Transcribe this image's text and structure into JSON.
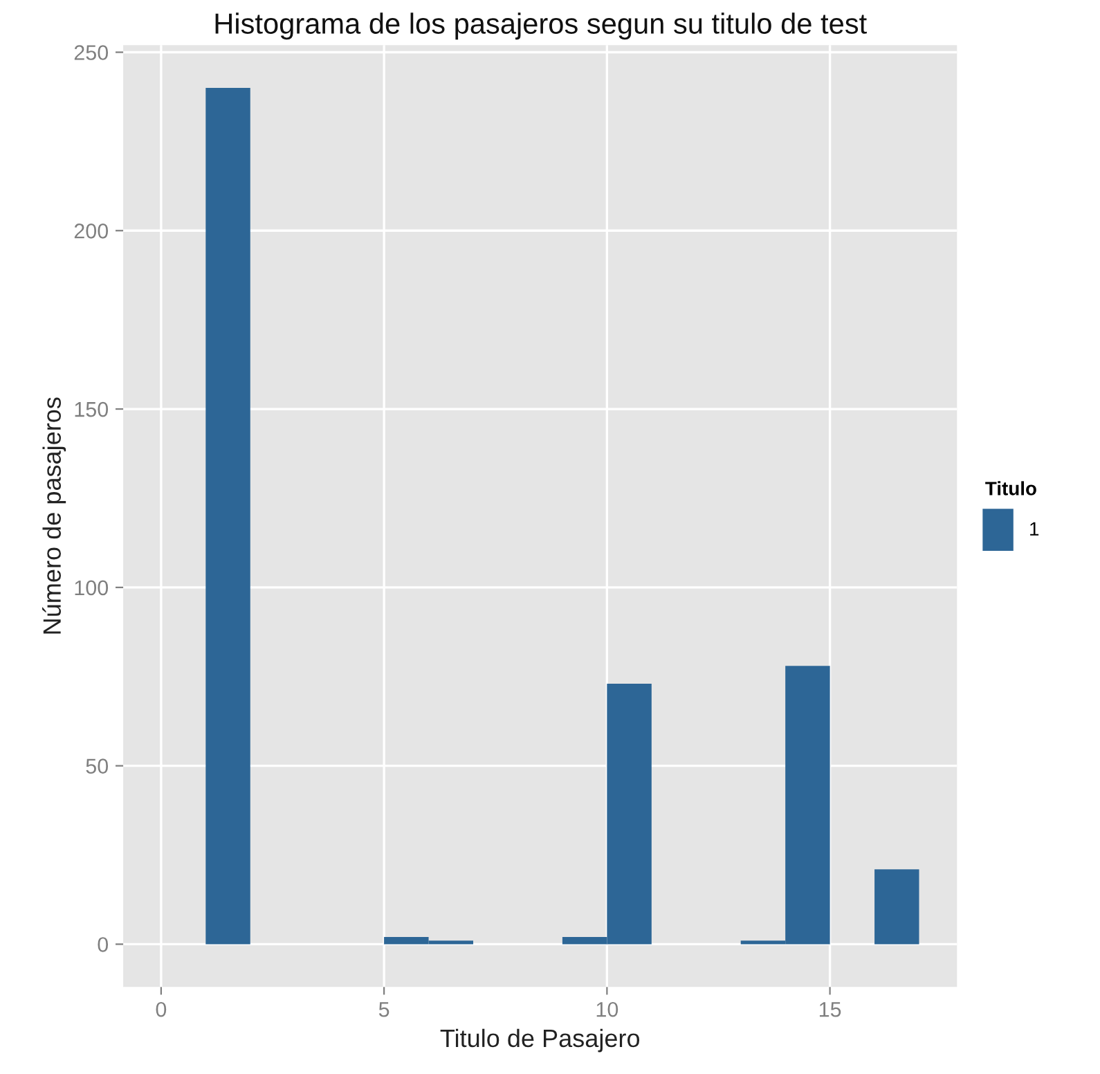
{
  "chart_data": {
    "type": "histogram",
    "title": "Histograma de los pasajeros segun su titulo de test",
    "xlabel": "Titulo de Pasajero",
    "ylabel": "Número de pasajeros",
    "legend_title": "Titulo",
    "bins": [
      1,
      2,
      3,
      4,
      5,
      6,
      7,
      8,
      9,
      10,
      11,
      12,
      13,
      14,
      15,
      16,
      17
    ],
    "series": [
      {
        "name": "1",
        "color": "#2d6696",
        "values": [
          240,
          0,
          0,
          0,
          2,
          1,
          0,
          0,
          2,
          73,
          0,
          0,
          1,
          78,
          0,
          21
        ]
      }
    ],
    "xlim": [
      -0.85,
      17.85
    ],
    "xticks": [
      0,
      5,
      10,
      15
    ],
    "ylim": [
      -12,
      252
    ],
    "yticks": [
      0,
      50,
      100,
      150,
      200,
      250
    ],
    "grid": true,
    "legend": "right"
  }
}
